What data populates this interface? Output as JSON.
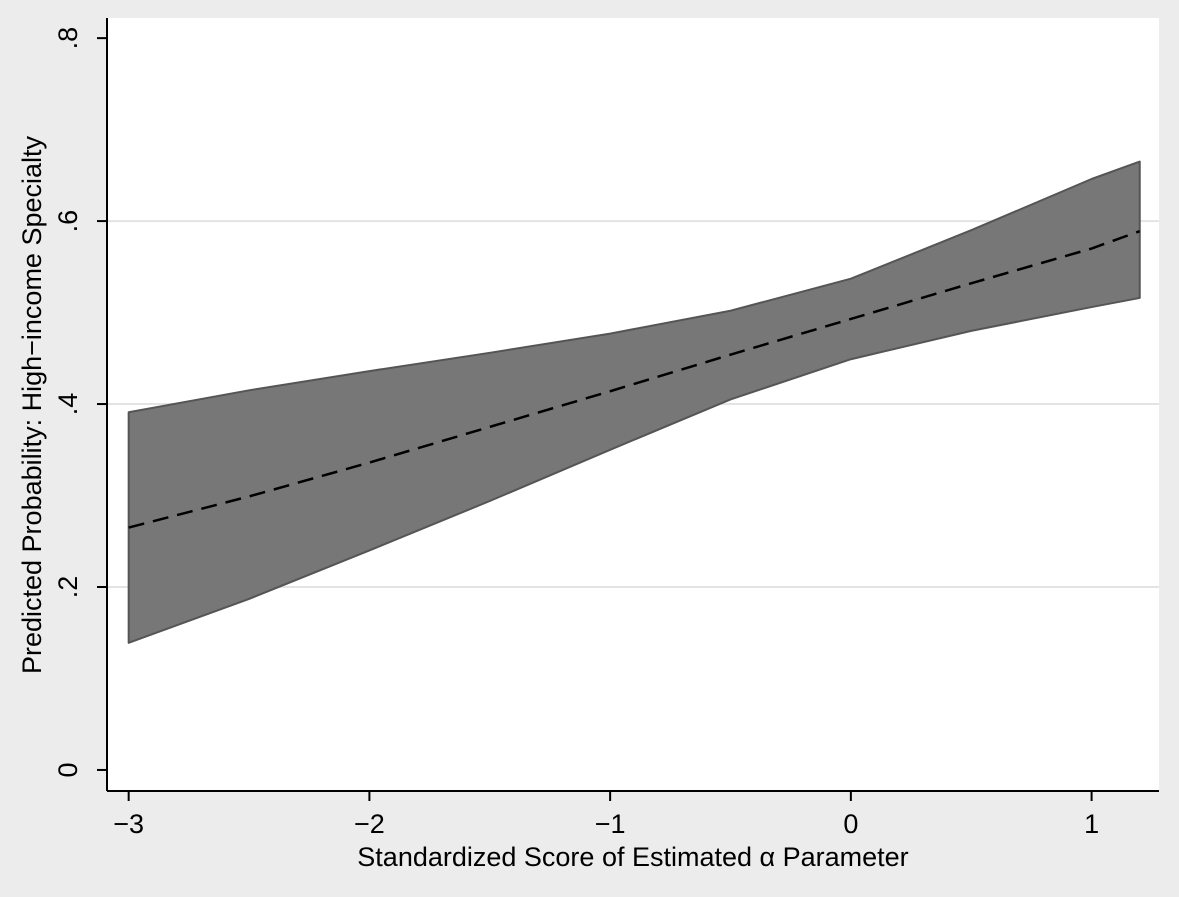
{
  "chart_data": {
    "type": "line",
    "xlabel": "Standardized Score of Estimated α Parameter",
    "ylabel": "Predicted Probability: High−income Specialty",
    "xlim": [
      -3.09,
      1.28
    ],
    "ylim": [
      -0.023,
      0.822
    ],
    "x_ticks": [
      {
        "value": -3,
        "label": "−3"
      },
      {
        "value": -2,
        "label": "−2"
      },
      {
        "value": -1,
        "label": "−1"
      },
      {
        "value": 0,
        "label": "0"
      },
      {
        "value": 1,
        "label": "1"
      }
    ],
    "y_ticks": [
      {
        "value": 0,
        "label": "0"
      },
      {
        "value": 0.2,
        "label": ".2"
      },
      {
        "value": 0.4,
        "label": ".4"
      },
      {
        "value": 0.6,
        "label": ".6"
      },
      {
        "value": 0.8,
        "label": ".8"
      }
    ],
    "grid": "horizontal",
    "series": [
      {
        "kind": "confidence-band",
        "color": "#777777",
        "x": [
          -3.0,
          -2.5,
          -2.0,
          -1.5,
          -1.0,
          -0.5,
          0.0,
          0.5,
          1.0,
          1.2
        ],
        "lower": [
          0.139,
          0.187,
          0.24,
          0.294,
          0.35,
          0.405,
          0.449,
          0.48,
          0.506,
          0.516
        ],
        "upper": [
          0.391,
          0.415,
          0.436,
          0.456,
          0.477,
          0.502,
          0.537,
          0.59,
          0.646,
          0.665
        ]
      },
      {
        "kind": "prediction",
        "style": "dashed",
        "color": "#000000",
        "x": [
          -3.0,
          -2.5,
          -2.0,
          -1.5,
          -1.0,
          -0.5,
          0.0,
          0.5,
          1.0,
          1.2
        ],
        "y": [
          0.265,
          0.299,
          0.336,
          0.375,
          0.414,
          0.454,
          0.493,
          0.532,
          0.57,
          0.589
        ]
      }
    ]
  }
}
